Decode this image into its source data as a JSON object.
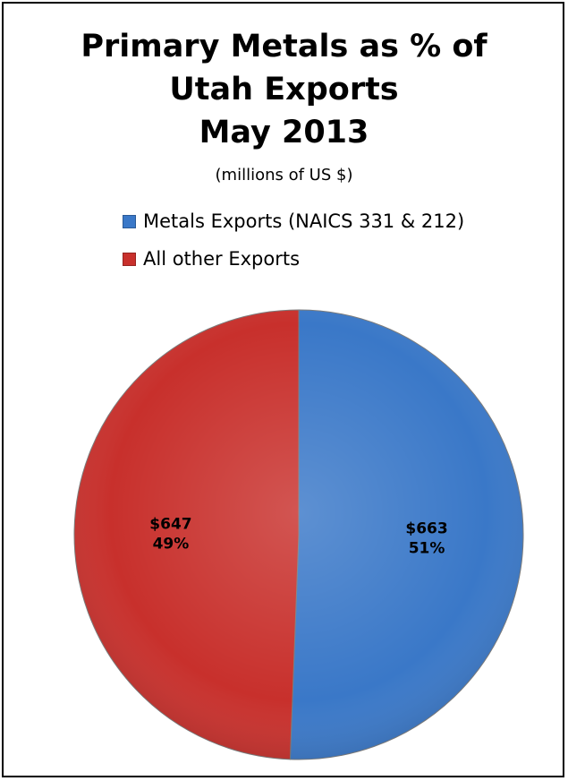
{
  "chart_data": {
    "type": "pie",
    "title_lines": [
      "Primary Metals as % of",
      "Utah Exports",
      "May 2013"
    ],
    "subtitle": "(millions of US $)",
    "legend_position": "top",
    "slices": [
      {
        "name": "Metals Exports (NAICS 331 & 212)",
        "value": 663,
        "value_label": "$663",
        "percent_label": "51%",
        "color": "#3a78c8"
      },
      {
        "name": "All other Exports",
        "value": 647,
        "value_label": "$647",
        "percent_label": "49%",
        "color": "#c8302c"
      }
    ]
  }
}
